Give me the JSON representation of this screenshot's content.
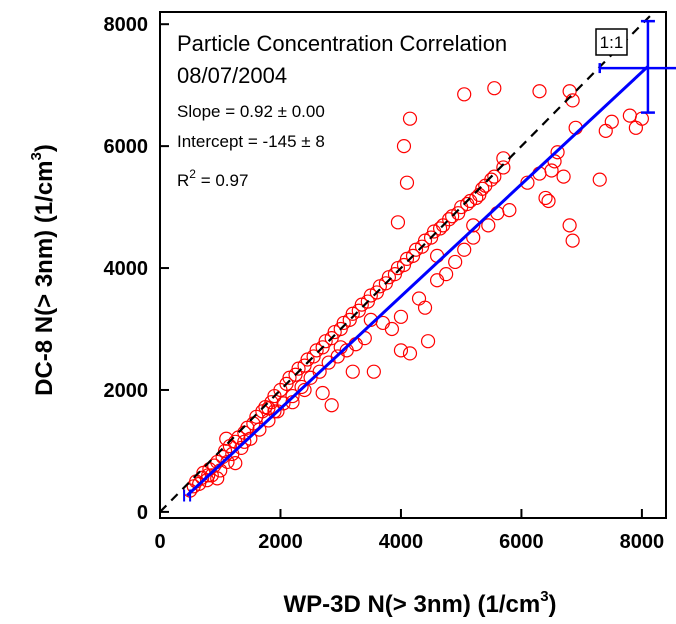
{
  "chart_data": {
    "type": "scatter",
    "title": "Particle Concentration Correlation",
    "subtitle": "08/07/2004",
    "xlabel": {
      "main": "WP-3D  N(> 3nm)  (1/cm",
      "sup": "3",
      "close": ")"
    },
    "ylabel": {
      "main": "DC-8 N(> 3nm)  (1/cm",
      "sup": "3",
      "close": ")"
    },
    "xlim": [
      0,
      8400
    ],
    "ylim": [
      -100,
      8200
    ],
    "xticks": [
      "0",
      "2000",
      "4000",
      "6000",
      "8000"
    ],
    "yticks": [
      "0",
      "2000",
      "4000",
      "6000",
      "8000"
    ],
    "grid": false,
    "one_to_one_label": "1:1",
    "stats": {
      "slope": "Slope = 0.92 ± 0.00",
      "intercept": "Intercept = -145 ± 8",
      "r2_prefix": "R",
      "r2_sup": "2",
      "r2_value": " = 0.97"
    },
    "fit": {
      "slope": 0.92,
      "intercept": -145,
      "x_range": [
        450,
        8100
      ]
    },
    "error_bar": {
      "x": 8100,
      "y": 7280,
      "x_low": 7300,
      "x_high": 8700,
      "y_low": 6550,
      "y_high": 8050
    },
    "colors": {
      "points": "#ff0000",
      "fit": "#0000ff",
      "one_to_one": "#000000"
    },
    "points": [
      [
        500,
        350
      ],
      [
        560,
        420
      ],
      [
        600,
        500
      ],
      [
        650,
        460
      ],
      [
        700,
        560
      ],
      [
        720,
        640
      ],
      [
        780,
        520
      ],
      [
        820,
        700
      ],
      [
        860,
        600
      ],
      [
        900,
        760
      ],
      [
        950,
        820
      ],
      [
        1000,
        680
      ],
      [
        1040,
        900
      ],
      [
        1080,
        1000
      ],
      [
        1120,
        820
      ],
      [
        1160,
        1080
      ],
      [
        1200,
        950
      ],
      [
        1250,
        1150
      ],
      [
        1300,
        1220
      ],
      [
        1350,
        1050
      ],
      [
        1400,
        1300
      ],
      [
        1450,
        1380
      ],
      [
        1500,
        1200
      ],
      [
        1550,
        1450
      ],
      [
        1600,
        1560
      ],
      [
        1650,
        1350
      ],
      [
        1700,
        1650
      ],
      [
        1750,
        1720
      ],
      [
        1800,
        1500
      ],
      [
        1850,
        1800
      ],
      [
        1900,
        1900
      ],
      [
        1950,
        1650
      ],
      [
        2000,
        2000
      ],
      [
        2050,
        1780
      ],
      [
        2100,
        2100
      ],
      [
        2150,
        2200
      ],
      [
        2200,
        1900
      ],
      [
        2250,
        2250
      ],
      [
        2300,
        2350
      ],
      [
        2350,
        2050
      ],
      [
        2400,
        2400
      ],
      [
        2450,
        2500
      ],
      [
        2500,
        2200
      ],
      [
        2550,
        2550
      ],
      [
        2600,
        2650
      ],
      [
        2650,
        2300
      ],
      [
        2700,
        2700
      ],
      [
        2750,
        2800
      ],
      [
        2800,
        2450
      ],
      [
        2850,
        2850
      ],
      [
        2900,
        2950
      ],
      [
        2950,
        2550
      ],
      [
        3000,
        3000
      ],
      [
        3050,
        3100
      ],
      [
        3100,
        2650
      ],
      [
        3150,
        3150
      ],
      [
        3200,
        3250
      ],
      [
        3250,
        2750
      ],
      [
        3300,
        3300
      ],
      [
        3350,
        3400
      ],
      [
        3400,
        2850
      ],
      [
        3450,
        3450
      ],
      [
        3500,
        3550
      ],
      [
        3550,
        2300
      ],
      [
        3600,
        3600
      ],
      [
        3650,
        3700
      ],
      [
        3700,
        3100
      ],
      [
        3750,
        3750
      ],
      [
        3800,
        3850
      ],
      [
        3850,
        3000
      ],
      [
        3900,
        3900
      ],
      [
        3950,
        4000
      ],
      [
        4000,
        3200
      ],
      [
        4050,
        4050
      ],
      [
        4100,
        4150
      ],
      [
        4150,
        2600
      ],
      [
        4200,
        4200
      ],
      [
        4250,
        4300
      ],
      [
        4300,
        3500
      ],
      [
        4350,
        4350
      ],
      [
        4400,
        4450
      ],
      [
        4450,
        2800
      ],
      [
        4500,
        4500
      ],
      [
        4550,
        4600
      ],
      [
        4600,
        3800
      ],
      [
        4650,
        4650
      ],
      [
        4700,
        4700
      ],
      [
        4750,
        3900
      ],
      [
        4800,
        4800
      ],
      [
        4850,
        4850
      ],
      [
        4900,
        4100
      ],
      [
        4950,
        4900
      ],
      [
        5000,
        5000
      ],
      [
        5050,
        4300
      ],
      [
        5100,
        5050
      ],
      [
        5150,
        5100
      ],
      [
        5200,
        4500
      ],
      [
        5250,
        5150
      ],
      [
        5300,
        5200
      ],
      [
        5350,
        5300
      ],
      [
        5400,
        5350
      ],
      [
        5450,
        4700
      ],
      [
        5500,
        5450
      ],
      [
        5550,
        5500
      ],
      [
        5600,
        4900
      ],
      [
        5700,
        5800
      ],
      [
        5800,
        4950
      ],
      [
        6300,
        5550
      ],
      [
        6400,
        5150
      ],
      [
        6450,
        5100
      ],
      [
        6500,
        5600
      ],
      [
        6550,
        5750
      ],
      [
        6600,
        5900
      ],
      [
        6700,
        5500
      ],
      [
        6800,
        4700
      ],
      [
        6850,
        4450
      ],
      [
        6900,
        6300
      ],
      [
        7300,
        5450
      ],
      [
        7400,
        6250
      ],
      [
        7500,
        6400
      ],
      [
        7800,
        6500
      ],
      [
        7900,
        6300
      ],
      [
        8000,
        6450
      ],
      [
        6800,
        6900
      ],
      [
        6850,
        6750
      ],
      [
        6300,
        6900
      ],
      [
        5550,
        6950
      ],
      [
        5050,
        6850
      ],
      [
        4150,
        6450
      ],
      [
        4050,
        6000
      ],
      [
        4100,
        5400
      ],
      [
        3950,
        4750
      ],
      [
        5700,
        5650
      ],
      [
        2400,
        2000
      ],
      [
        2200,
        1800
      ],
      [
        3000,
        2700
      ],
      [
        3500,
        3150
      ],
      [
        1800,
        1700
      ],
      [
        1900,
        1650
      ],
      [
        2700,
        1950
      ],
      [
        3200,
        2300
      ],
      [
        4400,
        3350
      ],
      [
        4600,
        4200
      ],
      [
        1400,
        1150
      ],
      [
        1250,
        800
      ],
      [
        950,
        550
      ],
      [
        800,
        600
      ],
      [
        2850,
        1750
      ],
      [
        4000,
        2650
      ],
      [
        5200,
        4700
      ],
      [
        6100,
        5400
      ],
      [
        1100,
        1200
      ]
    ]
  }
}
